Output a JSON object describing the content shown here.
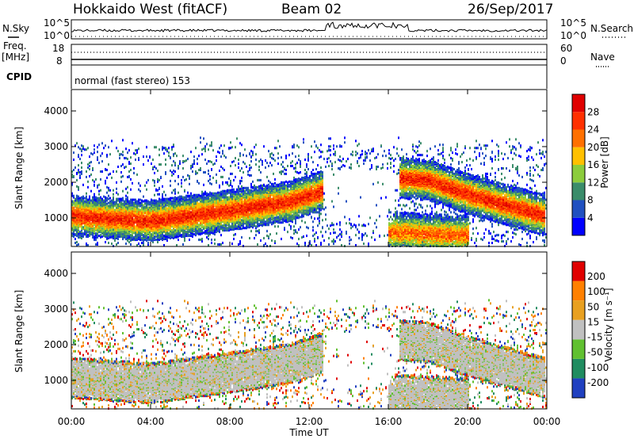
{
  "header": {
    "radar": "Hokkaido West (fitACF)",
    "beam": "Beam 02",
    "date": "26/Sep/2017"
  },
  "noise_panel": {
    "left_label": "N.Sky",
    "right_label": "N.Search",
    "y_top": "10^5",
    "y_bottom": "10^0"
  },
  "freq_panel": {
    "left_label": "Freq.",
    "left_unit": "[MHz]",
    "left_ticks": [
      "18",
      "8"
    ],
    "right_label": "Nave",
    "right_ticks": [
      "60",
      "0"
    ]
  },
  "cpid": {
    "label": "CPID",
    "text": "normal (fast stereo) 153"
  },
  "chart_data": [
    {
      "type": "heatmap",
      "quantity": "Power",
      "ylabel": "Slant Range [km]",
      "xlabel": "Time UT",
      "yticks": [
        1000,
        2000,
        3000,
        4000
      ],
      "ylim": [
        200,
        4600
      ],
      "xticks": [
        "00:00",
        "04:00",
        "08:00",
        "12:00",
        "16:00",
        "20:00",
        "00:00"
      ],
      "colorbar_label": "Power [dB]",
      "colorbar_ticks": [
        "4",
        "8",
        "12",
        "16",
        "20",
        "24",
        "28"
      ],
      "colors": [
        "#0000ff",
        "#2050c0",
        "#3a8c6a",
        "#8ccc3c",
        "#ffc000",
        "#ff7000",
        "#ff3000",
        "#e00000"
      ],
      "features": [
        {
          "t": [
            0,
            4,
            8,
            11,
            12.7
          ],
          "center_km": [
            1100,
            950,
            1250,
            1500,
            1800
          ],
          "intensity": 0.9
        },
        {
          "t": [
            16.5,
            18,
            20,
            23.9
          ],
          "center_km": [
            2150,
            2100,
            1700,
            1100
          ],
          "intensity": 0.9
        },
        {
          "t": [
            16,
            20
          ],
          "center_km": [
            650,
            550
          ],
          "intensity": 0.75
        }
      ]
    },
    {
      "type": "heatmap",
      "quantity": "Velocity",
      "ylabel": "Slant Range [km]",
      "xlabel": "Time UT",
      "yticks": [
        1000,
        2000,
        3000,
        4000
      ],
      "ylim": [
        200,
        4600
      ],
      "xticks": [
        "00:00",
        "04:00",
        "08:00",
        "12:00",
        "16:00",
        "20:00",
        "00:00"
      ],
      "colorbar_label": "Velocity [m s⁻¹]",
      "colorbar_ticks": [
        "200",
        "100",
        "50",
        "15",
        "-15",
        "-50",
        "-100",
        "-200"
      ],
      "colors": [
        "#2040c0",
        "#208c60",
        "#60c030",
        "#c0c0c0",
        "#e8a020",
        "#ff8000",
        "#e00000"
      ]
    }
  ]
}
